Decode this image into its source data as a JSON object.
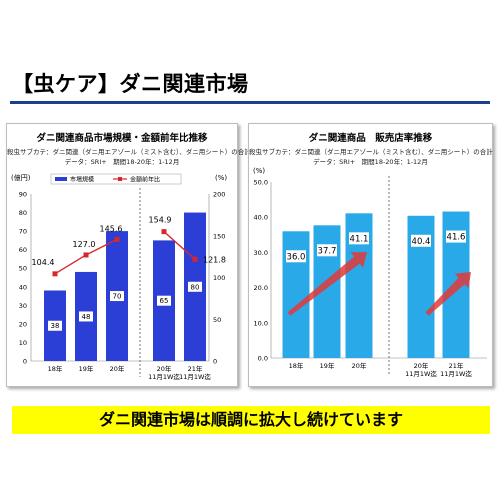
{
  "slide": {
    "title": "【虫ケア】ダニ関連市場",
    "banner": "ダニ関連市場は順調に拡大し続けています"
  },
  "colors": {
    "title_rule": "#1b3f8f",
    "market_bar": "#2b3fd6",
    "yoy_line": "#d9262b",
    "store_bar": "#2aa9e8",
    "arrow": "#e23a38",
    "banner": "#ffff00"
  },
  "chart_data": [
    {
      "type": "bar",
      "title": "ダニ関連商品市場規模・金額前年比推移",
      "subtitle_1": "殺虫サブカテ：ダニ関連（ダニ用エアゾール（ミスト含む）、ダニ用シート）の合計",
      "subtitle_2": "データ：SRI+　期間18-20年：1-12月",
      "ylabel_left": "(億円)",
      "ylabel_right": "(%)",
      "categories": [
        "18年",
        "19年",
        "20年",
        "20年\n11月1W迄",
        "21年\n11月1W迄"
      ],
      "ylim": [
        0,
        90
      ],
      "yticks": [
        "0",
        "10",
        "20",
        "30",
        "40",
        "50",
        "60",
        "70",
        "80",
        "90"
      ],
      "y2lim": [
        0,
        200
      ],
      "y2ticks": [
        "0",
        "50",
        "100",
        "150",
        "200"
      ],
      "legend": [
        "市場規模",
        "金額前年比"
      ],
      "series": [
        {
          "name": "市場規模",
          "kind": "bar",
          "values": [
            38,
            48,
            70,
            65,
            80
          ],
          "labels": [
            "38",
            "48",
            "70",
            "65",
            "80"
          ]
        },
        {
          "name": "金額前年比",
          "kind": "line",
          "axis": "right",
          "values": [
            104.4,
            127.0,
            145.6,
            154.9,
            121.8
          ],
          "labels": [
            "104.4",
            "127.0",
            "145.6",
            "154.9",
            "121.8"
          ]
        }
      ]
    },
    {
      "type": "bar",
      "title": "ダニ関連商品　販売店率推移",
      "subtitle_1": "殺虫サブカテ：ダニ関連（ダニ用エアゾール（ミスト含む）、ダニ用シート）の合計",
      "subtitle_2": "データ：SRI+　期間18-20年：1-12月",
      "ylabel": "(%)",
      "categories": [
        "18年",
        "19年",
        "20年",
        "20年\n11月1W迄",
        "21年\n11月1W迄"
      ],
      "ylim": [
        0,
        50
      ],
      "yticks": [
        "0.0",
        "10.0",
        "20.0",
        "30.0",
        "40.0",
        "50.0"
      ],
      "series": [
        {
          "name": "販売店率",
          "kind": "bar",
          "values": [
            36.0,
            37.7,
            41.1,
            40.4,
            41.6
          ],
          "labels": [
            "36.0",
            "37.7",
            "41.1",
            "40.4",
            "41.6"
          ]
        }
      ]
    }
  ]
}
